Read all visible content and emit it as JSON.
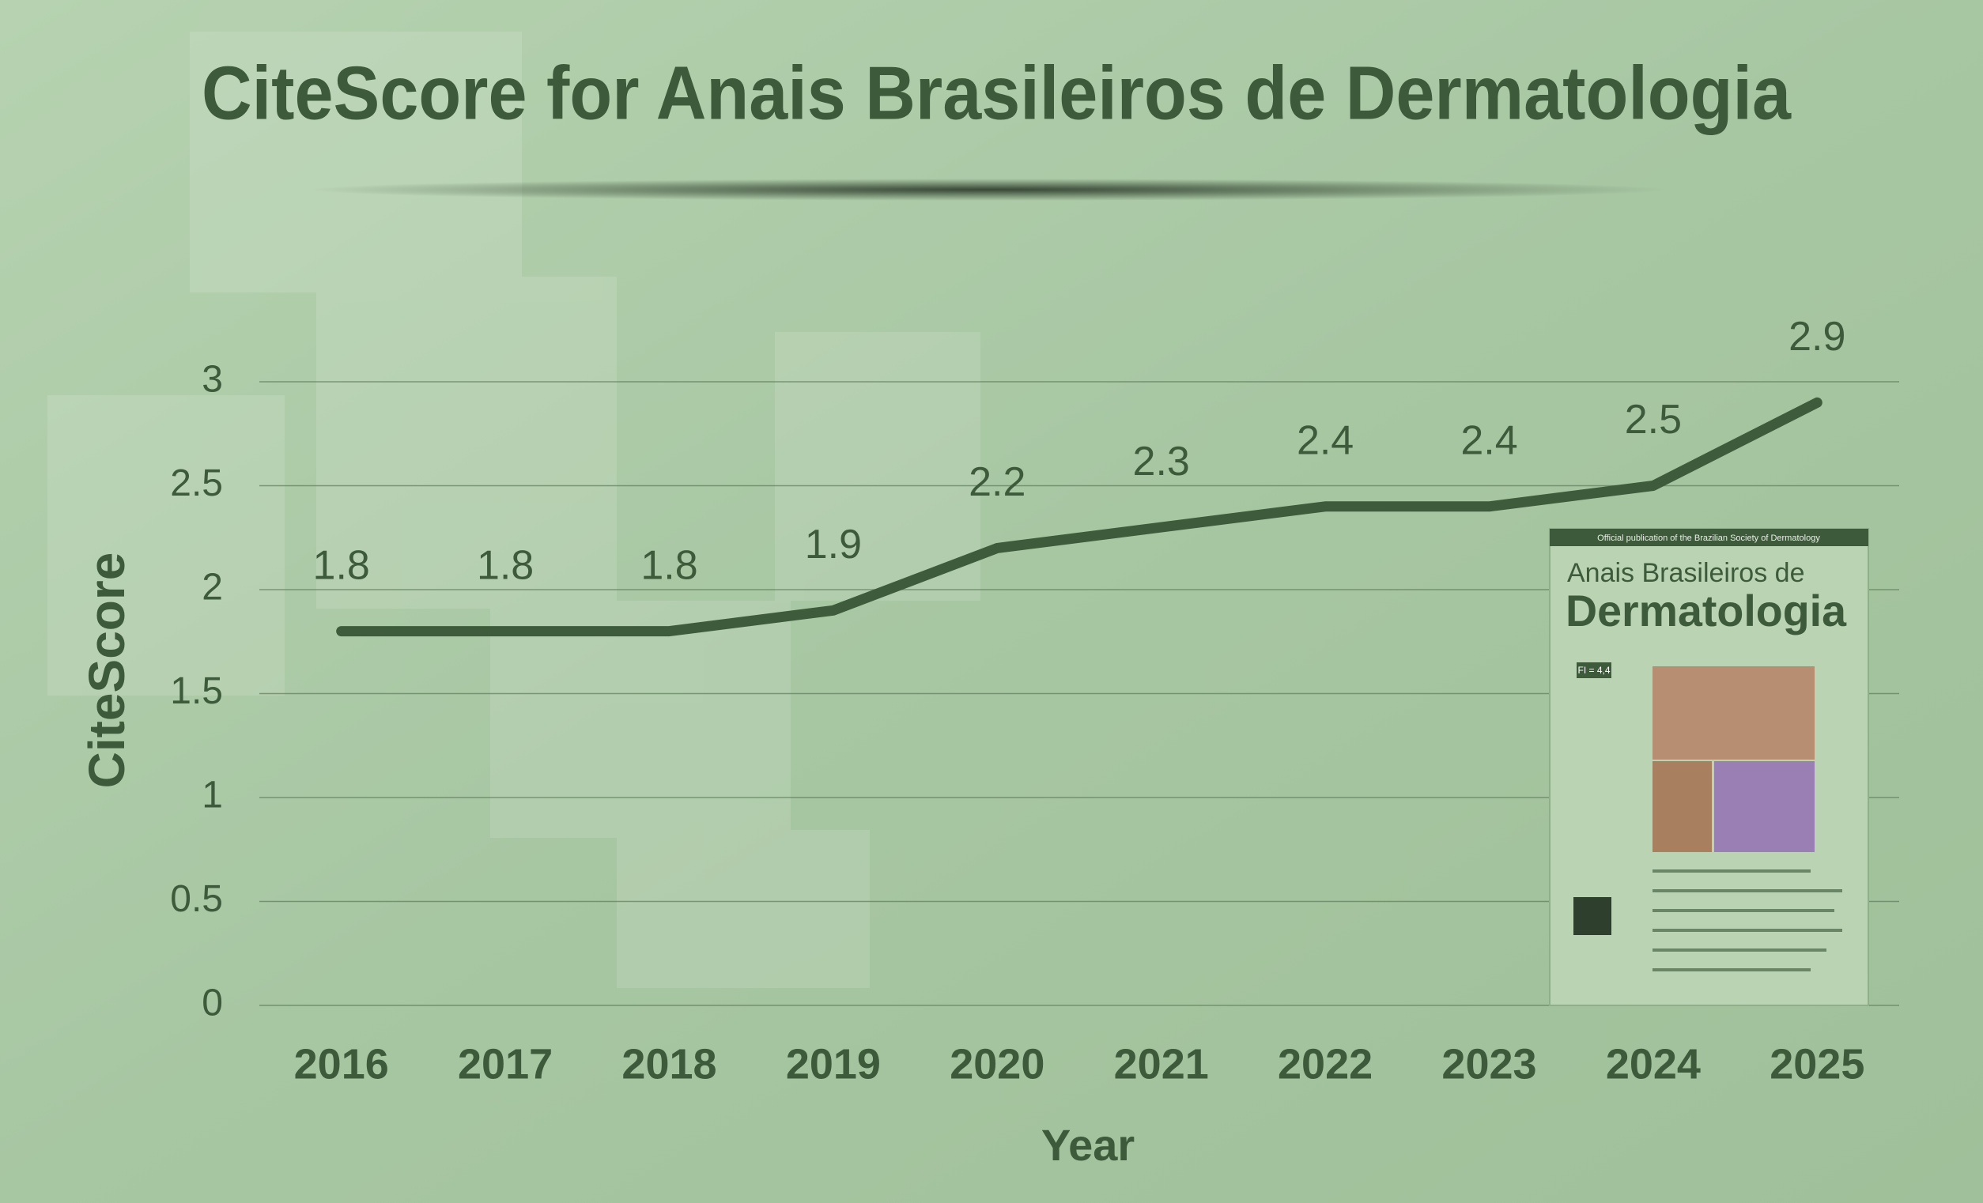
{
  "chart_data": {
    "type": "line",
    "title": "CiteScore for Anais Brasileiros de Dermatologia",
    "x_label": "Year",
    "y_label": "CiteScore",
    "categories": [
      "2016",
      "2017",
      "2018",
      "2019",
      "2020",
      "2021",
      "2022",
      "2023",
      "2024",
      "2025"
    ],
    "values": [
      1.8,
      1.8,
      1.8,
      1.9,
      2.2,
      2.3,
      2.4,
      2.4,
      2.5,
      2.9
    ],
    "color": "#3e5c3b",
    "ylim": [
      0,
      3
    ],
    "yticks": [
      0,
      0.5,
      1,
      1.5,
      2,
      2.5,
      3
    ],
    "grid": true
  },
  "cover": {
    "publisher_line": "Official publication of the Brazilian Society of Dermatology",
    "title_line_1": "Anais Brasileiros de",
    "title_line_2": "Dermatologia",
    "impact": "FI = 4,4"
  }
}
